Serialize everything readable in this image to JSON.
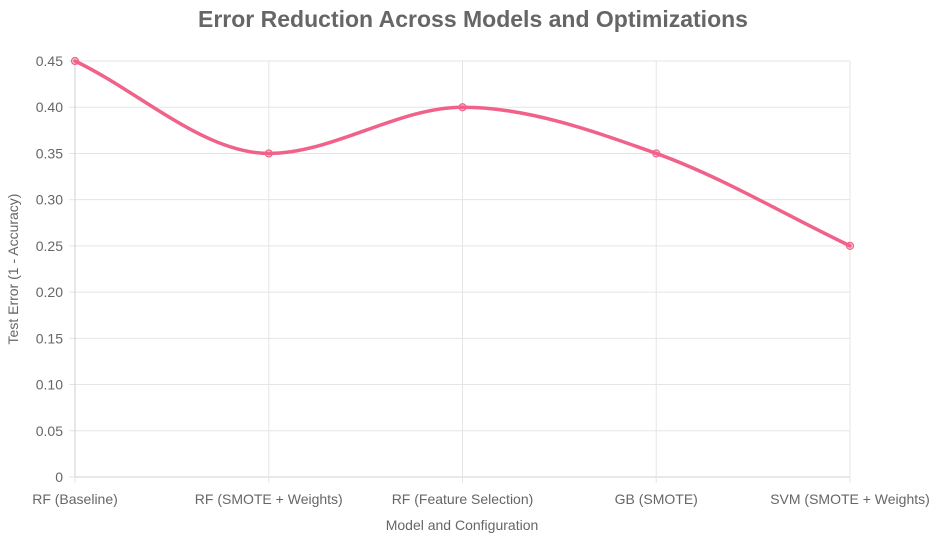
{
  "chart_data": {
    "type": "line",
    "title": "Error Reduction Across Models and Optimizations",
    "xlabel": "Model and Configuration",
    "ylabel": "Test Error (1 - Accuracy)",
    "categories": [
      "RF (Baseline)",
      "RF (SMOTE + Weights)",
      "RF (Feature Selection)",
      "GB (SMOTE)",
      "SVM (SMOTE + Weights)"
    ],
    "series": [
      {
        "values": [
          0.45,
          0.35,
          0.4,
          0.35,
          0.25
        ],
        "color": "#f06289"
      }
    ],
    "ylim": [
      0,
      0.45
    ],
    "y_ticks": [
      "0",
      "0.05",
      "0.10",
      "0.15",
      "0.20",
      "0.25",
      "0.30",
      "0.35",
      "0.40",
      "0.45"
    ],
    "grid": true,
    "legend": "none",
    "curve": "smooth"
  }
}
